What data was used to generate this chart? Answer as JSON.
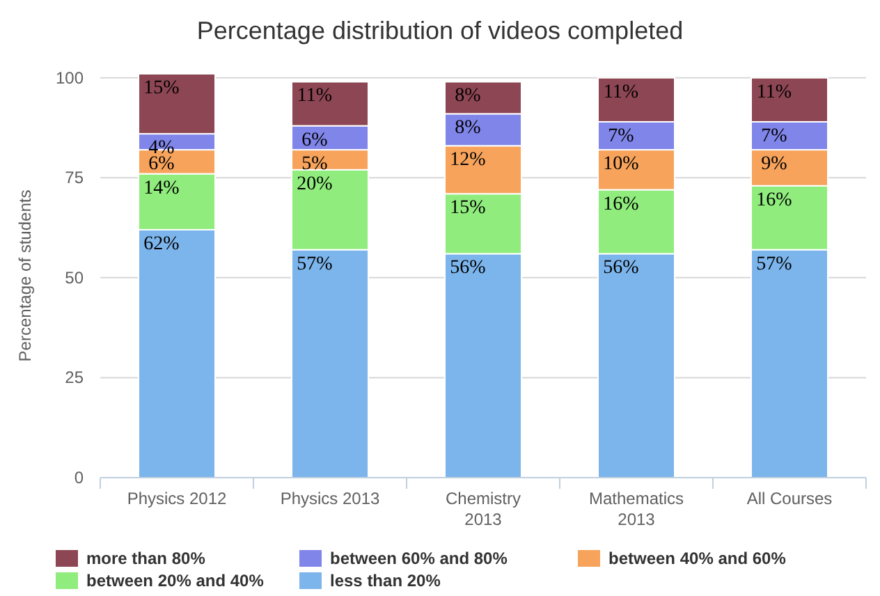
{
  "chart_data": {
    "type": "bar",
    "title": "Percentage distribution of videos completed",
    "ylabel": "Percentage of students",
    "categories": [
      "Physics 2012",
      "Physics 2013",
      "Chemistry 2013",
      "Mathematics 2013",
      "All Courses"
    ],
    "stacked": true,
    "legend": "bottom",
    "grid": "y",
    "ylim": [
      0,
      101
    ],
    "yticks": [
      0,
      25,
      50,
      75,
      100
    ],
    "series": [
      {
        "name": "less than 20%",
        "color": "#7cb5ec",
        "values": [
          62,
          57,
          56,
          56,
          57
        ],
        "value_labels": [
          "62%",
          "57%",
          "56%",
          "56%",
          "57%"
        ]
      },
      {
        "name": "between 20% and 40%",
        "color": "#90ed7d",
        "values": [
          14,
          20,
          15,
          16,
          16
        ],
        "value_labels": [
          "14%",
          "20%",
          "15%",
          "16%",
          "16%"
        ]
      },
      {
        "name": "between 40% and 60%",
        "color": "#f7a35c",
        "values": [
          6,
          5,
          12,
          10,
          9
        ],
        "value_labels": [
          "6%",
          "5%",
          "12%",
          "10%",
          "9%"
        ]
      },
      {
        "name": "between 60% and 80%",
        "color": "#8085e9",
        "values": [
          4,
          6,
          8,
          7,
          7
        ],
        "value_labels": [
          "4%",
          "6%",
          "8%",
          "7%",
          "7%"
        ]
      },
      {
        "name": "more than 80%",
        "color": "#8d4653",
        "values": [
          15,
          11,
          8,
          11,
          11
        ],
        "value_labels": [
          "15%",
          "11%",
          "8%",
          "11%",
          "11%"
        ]
      }
    ]
  }
}
